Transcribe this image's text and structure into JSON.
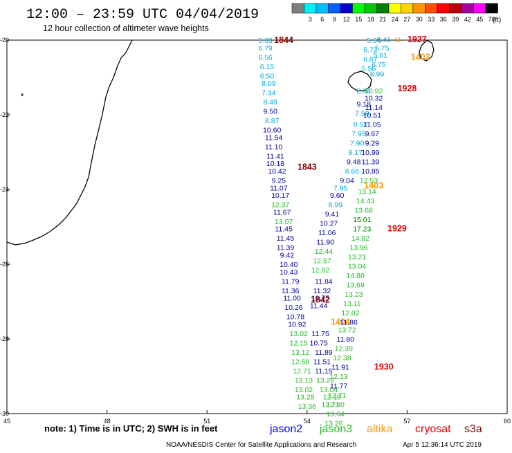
{
  "header": {
    "title": "12:00 – 23:59 UTC 04/04/2019",
    "subtitle": "12 hour collection of altimeter wave heights"
  },
  "legend": {
    "unit": "(ft)",
    "items": [
      {
        "label": "",
        "color": "#7f7f7f"
      },
      {
        "label": "3",
        "color": "#00f0f0"
      },
      {
        "label": "6",
        "color": "#00bfff"
      },
      {
        "label": "9",
        "color": "#0060ff"
      },
      {
        "label": "12",
        "color": "#0000c8"
      },
      {
        "label": "15",
        "color": "#00ff00"
      },
      {
        "label": "18",
        "color": "#00c800"
      },
      {
        "label": "21",
        "color": "#008000"
      },
      {
        "label": "24",
        "color": "#ffff00"
      },
      {
        "label": "27",
        "color": "#ffd200"
      },
      {
        "label": "30",
        "color": "#ff9600"
      },
      {
        "label": "33",
        "color": "#ff5000"
      },
      {
        "label": "36",
        "color": "#ff0000"
      },
      {
        "label": "39",
        "color": "#b40000"
      },
      {
        "label": "42",
        "color": "#a000a0"
      },
      {
        "label": "45",
        "color": "#ff00ff"
      },
      {
        "label": "70",
        "color": "#000000"
      }
    ]
  },
  "map": {
    "lon_range": [
      45,
      60
    ],
    "lat_range": [
      -30,
      -20
    ],
    "x_ticks": [
      "45",
      "48",
      "51",
      "54",
      "57",
      "60"
    ],
    "y_ticks": [
      "-20",
      "-22",
      "-24",
      "-26",
      "-28",
      "-30"
    ]
  },
  "colors": {
    "jason2": "#0000ff",
    "jason3": "#22bb22",
    "altika": "#ff9900",
    "cryosat": "#dd0000",
    "s3a": "#880000",
    "cyan": "#00aadd",
    "darkblue": "#000099"
  },
  "tracks": [
    {
      "label": "1844",
      "label_color": "#880000",
      "label_lon": 53.3,
      "label_lat": -20.0,
      "values": [
        {
          "v": "6.63",
          "lon": 52.75,
          "lat": -20.0,
          "color": "#00aadd"
        },
        {
          "v": "6.79",
          "lon": 52.75,
          "lat": -20.2,
          "color": "#00aadd"
        },
        {
          "v": "6.56",
          "lon": 52.75,
          "lat": -20.45,
          "color": "#00aadd"
        },
        {
          "v": "6.15",
          "lon": 52.8,
          "lat": -20.7,
          "color": "#00aadd"
        },
        {
          "v": "6.50",
          "lon": 52.8,
          "lat": -20.95,
          "color": "#00aadd"
        },
        {
          "v": "8.09",
          "lon": 52.85,
          "lat": -21.15,
          "color": "#00aadd"
        },
        {
          "v": "7.34",
          "lon": 52.85,
          "lat": -21.4,
          "color": "#00aadd"
        },
        {
          "v": "8.49",
          "lon": 52.9,
          "lat": -21.65,
          "color": "#00aadd"
        },
        {
          "v": "9.50",
          "lon": 52.9,
          "lat": -21.9,
          "color": "#000099"
        },
        {
          "v": "8.87",
          "lon": 52.95,
          "lat": -22.15,
          "color": "#00aadd"
        },
        {
          "v": "10.60",
          "lon": 52.95,
          "lat": -22.4,
          "color": "#000099"
        },
        {
          "v": "11.54",
          "lon": 53.0,
          "lat": -22.6,
          "color": "#000099"
        },
        {
          "v": "11.10",
          "lon": 53.0,
          "lat": -22.85,
          "color": "#000099"
        },
        {
          "v": "11.41",
          "lon": 53.05,
          "lat": -23.1,
          "color": "#000099"
        },
        {
          "v": "10.18",
          "lon": 53.05,
          "lat": -23.3,
          "color": "#000099"
        },
        {
          "v": "10.42",
          "lon": 53.1,
          "lat": -23.5,
          "color": "#000099"
        },
        {
          "v": "9.25",
          "lon": 53.15,
          "lat": -23.75,
          "color": "#000099"
        },
        {
          "v": "11.07",
          "lon": 53.15,
          "lat": -23.95,
          "color": "#000099"
        },
        {
          "v": "10.17",
          "lon": 53.2,
          "lat": -24.15,
          "color": "#000099"
        },
        {
          "v": "12.37",
          "lon": 53.2,
          "lat": -24.4,
          "color": "#22bb22"
        },
        {
          "v": "11.67",
          "lon": 53.25,
          "lat": -24.6,
          "color": "#000099"
        },
        {
          "v": "13.07",
          "lon": 53.3,
          "lat": -24.85,
          "color": "#22bb22"
        },
        {
          "v": "11.45",
          "lon": 53.3,
          "lat": -25.05,
          "color": "#000099"
        },
        {
          "v": "11.45",
          "lon": 53.35,
          "lat": -25.3,
          "color": "#000099"
        },
        {
          "v": "11.39",
          "lon": 53.35,
          "lat": -25.55,
          "color": "#000099"
        },
        {
          "v": "9.42",
          "lon": 53.4,
          "lat": -25.75,
          "color": "#000099"
        },
        {
          "v": "10.40",
          "lon": 53.45,
          "lat": -26.0,
          "color": "#000099"
        },
        {
          "v": "10.43",
          "lon": 53.45,
          "lat": -26.2,
          "color": "#000099"
        },
        {
          "v": "11.79",
          "lon": 53.5,
          "lat": -26.45,
          "color": "#000099"
        },
        {
          "v": "11.36",
          "lon": 53.5,
          "lat": -26.7,
          "color": "#000099"
        },
        {
          "v": "11.00",
          "lon": 53.55,
          "lat": -26.9,
          "color": "#000099"
        },
        {
          "v": "10.26",
          "lon": 53.6,
          "lat": -27.15,
          "color": "#000099"
        },
        {
          "v": "10.78",
          "lon": 53.65,
          "lat": -27.4,
          "color": "#000099"
        },
        {
          "v": "10.92",
          "lon": 53.7,
          "lat": -27.6,
          "color": "#000099"
        },
        {
          "v": "13.02",
          "lon": 53.75,
          "lat": -27.85,
          "color": "#22bb22"
        },
        {
          "v": "12.15",
          "lon": 53.75,
          "lat": -28.1,
          "color": "#22bb22"
        },
        {
          "v": "13.12",
          "lon": 53.8,
          "lat": -28.35,
          "color": "#22bb22"
        },
        {
          "v": "12.58",
          "lon": 53.8,
          "lat": -28.6,
          "color": "#22bb22"
        },
        {
          "v": "12.71",
          "lon": 53.85,
          "lat": -28.85,
          "color": "#22bb22"
        },
        {
          "v": "13.13",
          "lon": 53.9,
          "lat": -29.1,
          "color": "#22bb22"
        },
        {
          "v": "13.02",
          "lon": 53.9,
          "lat": -29.35,
          "color": "#22bb22"
        },
        {
          "v": "13.28",
          "lon": 53.95,
          "lat": -29.55,
          "color": "#22bb22"
        },
        {
          "v": "13.36",
          "lon": 54.0,
          "lat": -29.8,
          "color": "#22bb22"
        }
      ]
    },
    {
      "label": "1843",
      "label_color": "#880000",
      "label_lon": 54.0,
      "label_lat": -23.4,
      "values": []
    },
    {
      "label": "1842",
      "label_color": "#880000",
      "label_lon": 54.4,
      "label_lat": -26.95,
      "values": [
        {
          "v": "11.84",
          "lon": 54.5,
          "lat": -26.45,
          "color": "#000099"
        },
        {
          "v": "11.32",
          "lon": 54.45,
          "lat": -26.7,
          "color": "#000099"
        },
        {
          "v": "10.75",
          "lon": 54.4,
          "lat": -26.9,
          "color": "#000099"
        },
        {
          "v": "11.44",
          "lon": 54.35,
          "lat": -27.1,
          "color": "#000099"
        },
        {
          "v": "11.75",
          "lon": 54.4,
          "lat": -27.85,
          "color": "#000099"
        },
        {
          "v": "10.75",
          "lon": 54.35,
          "lat": -28.1,
          "color": "#000099"
        },
        {
          "v": "11.89",
          "lon": 54.5,
          "lat": -28.35,
          "color": "#000099"
        },
        {
          "v": "11.51",
          "lon": 54.45,
          "lat": -28.6,
          "color": "#000099"
        },
        {
          "v": "11.15",
          "lon": 54.5,
          "lat": -28.85,
          "color": "#000099"
        },
        {
          "v": "13.26",
          "lon": 54.55,
          "lat": -29.1,
          "color": "#22bb22"
        },
        {
          "v": "13.04",
          "lon": 54.65,
          "lat": -29.35,
          "color": "#22bb22"
        },
        {
          "v": "12.19",
          "lon": 54.75,
          "lat": -29.55,
          "color": "#22bb22"
        },
        {
          "v": "12.71",
          "lon": 54.7,
          "lat": -29.75,
          "color": "#22bb22"
        }
      ]
    },
    {
      "label": "1403",
      "label_color": "#ff9900",
      "label_lon": 56.0,
      "label_lat": -23.9,
      "values": [
        {
          "v": "9.04",
          "lon": 55.2,
          "lat": -23.75,
          "color": "#000099"
        },
        {
          "v": "7.95",
          "lon": 55.0,
          "lat": -23.95,
          "color": "#00aadd"
        },
        {
          "v": "9.60",
          "lon": 54.9,
          "lat": -24.15,
          "color": "#000099"
        },
        {
          "v": "8.99",
          "lon": 54.85,
          "lat": -24.4,
          "color": "#00aadd"
        },
        {
          "v": "9.41",
          "lon": 54.75,
          "lat": -24.65,
          "color": "#000099"
        },
        {
          "v": "10.27",
          "lon": 54.65,
          "lat": -24.9,
          "color": "#000099"
        },
        {
          "v": "11.06",
          "lon": 54.6,
          "lat": -25.15,
          "color": "#000099"
        },
        {
          "v": "11.90",
          "lon": 54.55,
          "lat": -25.4,
          "color": "#000099"
        },
        {
          "v": "12.44",
          "lon": 54.5,
          "lat": -25.65,
          "color": "#22bb22"
        },
        {
          "v": "12.57",
          "lon": 54.45,
          "lat": -25.9,
          "color": "#22bb22"
        },
        {
          "v": "12.82",
          "lon": 54.4,
          "lat": -26.15,
          "color": "#22bb22"
        }
      ]
    },
    {
      "label": "1404",
      "label_color": "#ff9900",
      "label_lon": 55.0,
      "label_lat": -27.55,
      "values": []
    },
    {
      "label": "1402",
      "label_color": "#ff9900",
      "label_lon": 57.4,
      "label_lat": -20.45,
      "values": []
    },
    {
      "label": "1927",
      "label_color": "#dd0000",
      "label_lon": 57.3,
      "label_lat": -19.98,
      "values": [
        {
          "v": "5.64",
          "lon": 56.0,
          "lat": -20.0,
          "color": "#00aadd"
        },
        {
          "v": "5.41",
          "lon": 56.3,
          "lat": -19.98,
          "color": "#00aadd"
        },
        {
          "v": "11.",
          "lon": 56.75,
          "lat": -19.98,
          "color": "#ff9900"
        },
        {
          "v": "5.75",
          "lon": 56.25,
          "lat": -20.2,
          "color": "#00aadd"
        },
        {
          "v": "5.72",
          "lon": 55.9,
          "lat": -20.25,
          "color": "#00aadd"
        },
        {
          "v": "5.61",
          "lon": 56.2,
          "lat": -20.4,
          "color": "#00aadd"
        },
        {
          "v": "6.67",
          "lon": 55.9,
          "lat": -20.5,
          "color": "#00aadd"
        },
        {
          "v": "6.75",
          "lon": 56.15,
          "lat": -20.65,
          "color": "#00aadd"
        },
        {
          "v": "5.56",
          "lon": 55.85,
          "lat": -20.75,
          "color": "#00aadd"
        },
        {
          "v": "8.99",
          "lon": 56.1,
          "lat": -20.9,
          "color": "#00aadd"
        }
      ]
    },
    {
      "label": "1928",
      "label_color": "#dd0000",
      "label_lon": 57.0,
      "label_lat": -21.3,
      "values": [
        {
          "v": "10.92",
          "lon": 56.0,
          "lat": -21.35,
          "color": "#22bb22"
        },
        {
          "v": "8.04",
          "lon": 55.7,
          "lat": -21.35,
          "color": "#00aadd"
        },
        {
          "v": "10.32",
          "lon": 56.0,
          "lat": -21.55,
          "color": "#000099"
        },
        {
          "v": "9.18",
          "lon": 55.7,
          "lat": -21.7,
          "color": "#000099"
        },
        {
          "v": "11.14",
          "lon": 56.0,
          "lat": -21.8,
          "color": "#000099"
        },
        {
          "v": "7.58",
          "lon": 55.65,
          "lat": -21.95,
          "color": "#00aadd"
        },
        {
          "v": "10.51",
          "lon": 55.95,
          "lat": -22.0,
          "color": "#000099"
        },
        {
          "v": "8.52",
          "lon": 55.6,
          "lat": -22.25,
          "color": "#00aadd"
        },
        {
          "v": "11.05",
          "lon": 55.95,
          "lat": -22.25,
          "color": "#000099"
        },
        {
          "v": "7.95",
          "lon": 55.55,
          "lat": -22.5,
          "color": "#00aadd"
        },
        {
          "v": "9.67",
          "lon": 55.95,
          "lat": -22.5,
          "color": "#000099"
        },
        {
          "v": "7.90",
          "lon": 55.5,
          "lat": -22.75,
          "color": "#00aadd"
        },
        {
          "v": "9.29",
          "lon": 55.95,
          "lat": -22.75,
          "color": "#000099"
        },
        {
          "v": "8.17",
          "lon": 55.45,
          "lat": -23.0,
          "color": "#00aadd"
        },
        {
          "v": "10.99",
          "lon": 55.9,
          "lat": -23.0,
          "color": "#000099"
        },
        {
          "v": "9.48",
          "lon": 55.4,
          "lat": -23.25,
          "color": "#000099"
        },
        {
          "v": "11.39",
          "lon": 55.9,
          "lat": -23.25,
          "color": "#000099"
        },
        {
          "v": "8.66",
          "lon": 55.35,
          "lat": -23.5,
          "color": "#00aadd"
        },
        {
          "v": "10.85",
          "lon": 55.9,
          "lat": -23.5,
          "color": "#000099"
        },
        {
          "v": "12.53",
          "lon": 55.85,
          "lat": -23.75,
          "color": "#22bb22"
        }
      ]
    },
    {
      "label": "1929",
      "label_color": "#dd0000",
      "label_lon": 56.7,
      "label_lat": -25.05,
      "values": [
        {
          "v": "13.14",
          "lon": 55.8,
          "lat": -24.05,
          "color": "#22bb22"
        },
        {
          "v": "14.43",
          "lon": 55.75,
          "lat": -24.3,
          "color": "#22bb22"
        },
        {
          "v": "13.68",
          "lon": 55.7,
          "lat": -24.55,
          "color": "#22bb22"
        },
        {
          "v": "15.01",
          "lon": 55.65,
          "lat": -24.8,
          "color": "#008000"
        },
        {
          "v": "17.23",
          "lon": 55.65,
          "lat": -25.05,
          "color": "#008000"
        },
        {
          "v": "14.82",
          "lon": 55.6,
          "lat": -25.3,
          "color": "#22bb22"
        },
        {
          "v": "13.96",
          "lon": 55.55,
          "lat": -25.55,
          "color": "#22bb22"
        },
        {
          "v": "13.21",
          "lon": 55.5,
          "lat": -25.8,
          "color": "#22bb22"
        },
        {
          "v": "13.04",
          "lon": 55.5,
          "lat": -26.05,
          "color": "#22bb22"
        },
        {
          "v": "14.80",
          "lon": 55.45,
          "lat": -26.3,
          "color": "#22bb22"
        },
        {
          "v": "13.69",
          "lon": 55.45,
          "lat": -26.55,
          "color": "#22bb22"
        },
        {
          "v": "13.23",
          "lon": 55.4,
          "lat": -26.8,
          "color": "#22bb22"
        },
        {
          "v": "13.11",
          "lon": 55.35,
          "lat": -27.05,
          "color": "#22bb22"
        },
        {
          "v": "12.02",
          "lon": 55.3,
          "lat": -27.3,
          "color": "#22bb22"
        }
      ]
    },
    {
      "label": "1930",
      "label_color": "#dd0000",
      "label_lon": 56.3,
      "label_lat": -28.75,
      "values": [
        {
          "v": "11.86",
          "lon": 55.25,
          "lat": -27.55,
          "color": "#000099"
        },
        {
          "v": "13.72",
          "lon": 55.2,
          "lat": -27.75,
          "color": "#22bb22"
        },
        {
          "v": "11.80",
          "lon": 55.15,
          "lat": -28.0,
          "color": "#000099"
        },
        {
          "v": "12.39",
          "lon": 55.1,
          "lat": -28.25,
          "color": "#22bb22"
        },
        {
          "v": "12.38",
          "lon": 55.05,
          "lat": -28.5,
          "color": "#22bb22"
        },
        {
          "v": "11.91",
          "lon": 55.0,
          "lat": -28.75,
          "color": "#000099"
        },
        {
          "v": "12.13",
          "lon": 54.95,
          "lat": -29.0,
          "color": "#22bb22"
        },
        {
          "v": "11.77",
          "lon": 54.95,
          "lat": -29.25,
          "color": "#000099"
        },
        {
          "v": "12.71",
          "lon": 54.9,
          "lat": -29.5,
          "color": "#22bb22"
        },
        {
          "v": "12.80",
          "lon": 54.85,
          "lat": -29.75,
          "color": "#22bb22"
        },
        {
          "v": "13.64",
          "lon": 54.85,
          "lat": -30.0,
          "color": "#22bb22"
        },
        {
          "v": "13.26",
          "lon": 54.8,
          "lat": -30.25,
          "color": "#22bb22"
        }
      ]
    }
  ],
  "footer": {
    "note": "note:  1) Time is in UTC;  2) SWH is in feet",
    "sats": [
      {
        "name": "jason2",
        "color": "#0000ff"
      },
      {
        "name": "jason3",
        "color": "#22bb22"
      },
      {
        "name": "altika",
        "color": "#ff9900"
      },
      {
        "name": "cryosat",
        "color": "#dd0000"
      },
      {
        "name": "s3a",
        "color": "#880000"
      }
    ],
    "credit": "NOAA/NESDIS Center for Satellite Applications and Research",
    "timestamp": "Apr  5 12:36:14 UTC 2019"
  }
}
